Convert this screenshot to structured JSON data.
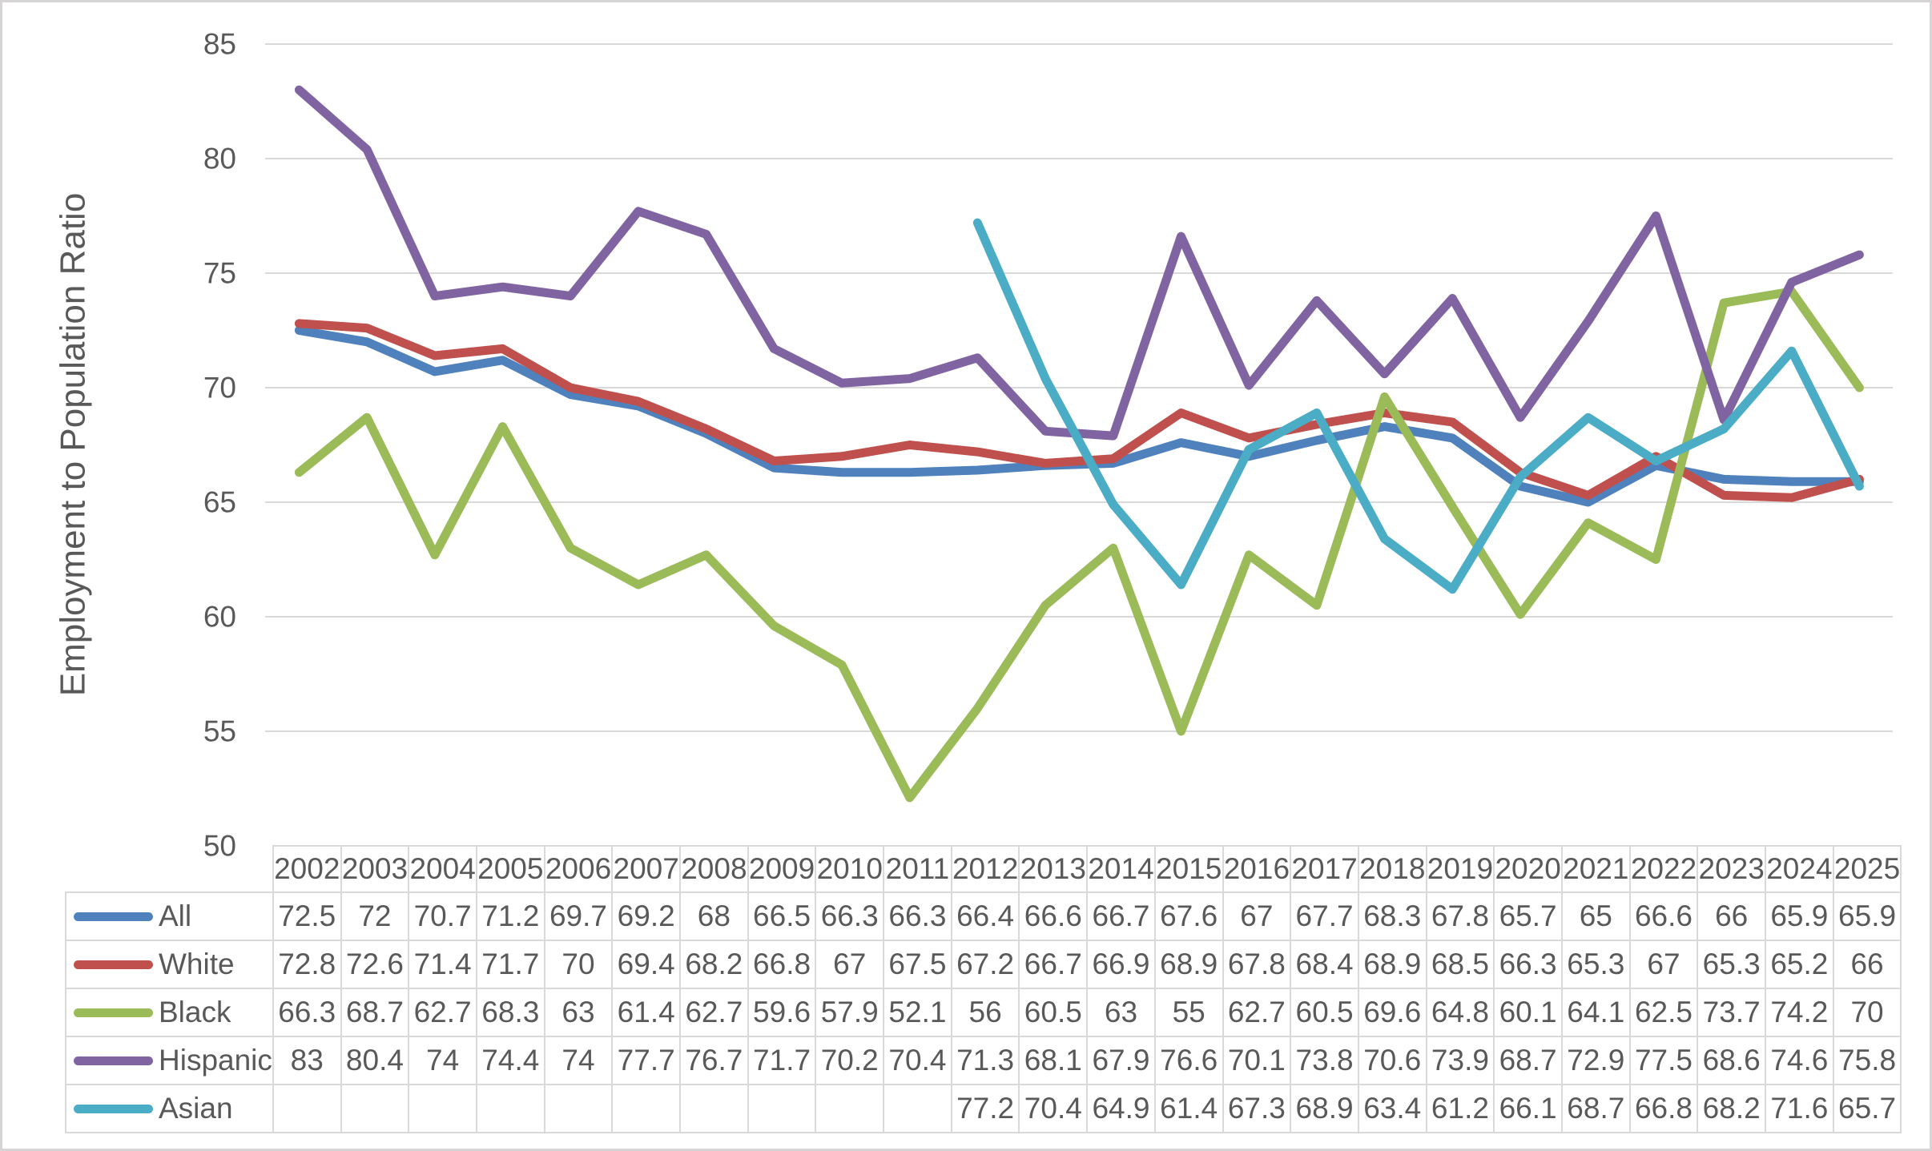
{
  "chart_data": {
    "type": "line",
    "title": "",
    "xlabel": "",
    "ylabel": "Employment to Population Ratio",
    "ylim": [
      50,
      85
    ],
    "yticks": [
      85,
      80,
      75,
      70,
      65,
      60,
      55,
      50
    ],
    "grid": true,
    "gridline_color": "#d9d9d9",
    "text_color": "#595959",
    "legend_position": "left-of-data-table",
    "categories": [
      2002,
      2003,
      2004,
      2005,
      2006,
      2007,
      2008,
      2009,
      2010,
      2011,
      2012,
      2013,
      2014,
      2015,
      2016,
      2017,
      2018,
      2019,
      2020,
      2021,
      2022,
      2023,
      2024,
      2025
    ],
    "series": [
      {
        "name": "All",
        "color": "#4f81bd",
        "values": [
          72.5,
          72,
          70.7,
          71.2,
          69.7,
          69.2,
          68,
          66.5,
          66.3,
          66.3,
          66.4,
          66.6,
          66.7,
          67.6,
          67,
          67.7,
          68.3,
          67.8,
          65.7,
          65,
          66.6,
          66,
          65.9,
          65.9
        ]
      },
      {
        "name": "White",
        "color": "#c0504d",
        "values": [
          72.8,
          72.6,
          71.4,
          71.7,
          70,
          69.4,
          68.2,
          66.8,
          67,
          67.5,
          67.2,
          66.7,
          66.9,
          68.9,
          67.8,
          68.4,
          68.9,
          68.5,
          66.3,
          65.3,
          67,
          65.3,
          65.2,
          66
        ]
      },
      {
        "name": "Black",
        "color": "#9bbb59",
        "values": [
          66.3,
          68.7,
          62.7,
          68.3,
          63,
          61.4,
          62.7,
          59.6,
          57.9,
          52.1,
          56,
          60.5,
          63,
          55,
          62.7,
          60.5,
          69.6,
          64.8,
          60.1,
          64.1,
          62.5,
          73.7,
          74.2,
          70
        ]
      },
      {
        "name": "Hispanic",
        "color": "#8064a2",
        "values": [
          83,
          80.4,
          74,
          74.4,
          74,
          77.7,
          76.7,
          71.7,
          70.2,
          70.4,
          71.3,
          68.1,
          67.9,
          76.6,
          70.1,
          73.8,
          70.6,
          73.9,
          68.7,
          72.9,
          77.5,
          68.6,
          74.6,
          75.8
        ]
      },
      {
        "name": "Asian",
        "color": "#4bacc6",
        "values": [
          null,
          null,
          null,
          null,
          null,
          null,
          null,
          null,
          null,
          null,
          77.2,
          70.4,
          64.9,
          61.4,
          67.3,
          68.9,
          63.4,
          61.2,
          66.1,
          68.7,
          66.8,
          68.2,
          71.6,
          65.7
        ]
      }
    ]
  }
}
